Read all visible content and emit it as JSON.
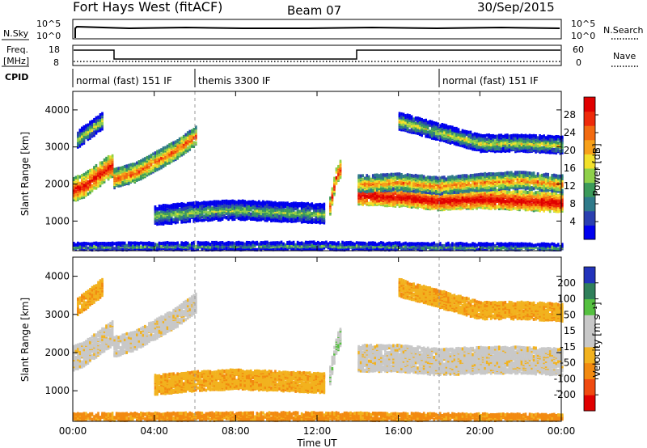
{
  "header": {
    "station": "Fort Hays West (fitACF)",
    "beam": "Beam 07",
    "date": "30/Sep/2015"
  },
  "noise_panel": {
    "left_label": "N.Sky",
    "right_label": "N.Search",
    "left_ticks": [
      "10^5",
      "10^0"
    ],
    "right_ticks": [
      "10^5",
      "10^0"
    ]
  },
  "freq_panel": {
    "left_label_line1": "Freq.",
    "left_label_line2": "[MHz]",
    "right_label": "Nave",
    "left_ticks": [
      "18",
      "8"
    ],
    "right_ticks": [
      "60",
      "0"
    ]
  },
  "cpid_panel": {
    "label": "CPID",
    "modes": [
      {
        "name": "normal (fast) 151 IF",
        "start_hour": 0,
        "end_hour": 6
      },
      {
        "name": "themis 3300 IF",
        "start_hour": 6,
        "end_hour": 18
      },
      {
        "name": "normal (fast) 151 IF",
        "start_hour": 18,
        "end_hour": 24
      }
    ]
  },
  "colors": {
    "power_scale": [
      "#0000ee",
      "#2a3fb0",
      "#2f7a8a",
      "#3c9a5a",
      "#8fd04a",
      "#f2e02a",
      "#f7a01a",
      "#f26a10",
      "#ee2a0a",
      "#e00000"
    ],
    "velocity_scale": [
      "#2233bb",
      "#2f7f5a",
      "#55c040",
      "#c8c8c8",
      "#c8c8c8",
      "#f2b21e",
      "#f28a10",
      "#f04a10",
      "#e00000"
    ],
    "frame": "#000000",
    "guide_line": "#9a9a9a"
  },
  "chart_data": [
    {
      "type": "heatmap",
      "name": "power",
      "xlabel": "",
      "ylabel": "Slant Range [km]",
      "xlim": [
        0,
        24
      ],
      "ylim": [
        200,
        4500
      ],
      "yticks": [
        "1000",
        "2000",
        "3000",
        "4000"
      ],
      "colorbar_label": "Power [dB]",
      "colorbar_ticks": [
        "28",
        "24",
        "20",
        "16",
        "12",
        "8",
        "4"
      ],
      "colorbar_range": [
        0,
        32
      ],
      "bands": [
        {
          "id": "main_echo_early",
          "x": [
            0.0,
            0.5,
            1.0,
            1.5,
            1.9
          ],
          "y_center": [
            1850,
            1950,
            2150,
            2350,
            2500
          ],
          "half_width": 300,
          "power": 22
        },
        {
          "id": "rising_echo_1",
          "x": [
            2.0,
            3.0,
            4.0,
            5.0,
            6.0
          ],
          "y_center": [
            2150,
            2300,
            2600,
            2900,
            3300
          ],
          "half_width": 250,
          "power": 18
        },
        {
          "id": "upper_echo_early",
          "x": [
            0.2,
            0.8,
            1.4
          ],
          "y_center": [
            3200,
            3450,
            3700
          ],
          "half_width": 200,
          "power": 10
        },
        {
          "id": "low_patches",
          "x": [
            4.0,
            6.0,
            8.0,
            10.0,
            12.3
          ],
          "y_center": [
            1150,
            1250,
            1300,
            1250,
            1200
          ],
          "half_width": 250,
          "power": 8
        },
        {
          "id": "spike_1250",
          "x": [
            12.6,
            12.9,
            13.1
          ],
          "y_center": [
            1400,
            2200,
            2400
          ],
          "half_width": 200,
          "power": 22
        },
        {
          "id": "main_echo_late_lower",
          "x": [
            14.0,
            16.0,
            18.0,
            20.0,
            22.0,
            24.0
          ],
          "y_center": [
            1700,
            1650,
            1550,
            1600,
            1550,
            1500
          ],
          "half_width": 250,
          "power": 24
        },
        {
          "id": "main_echo_late_upper",
          "x": [
            14.0,
            16.0,
            18.0,
            20.0,
            22.0,
            24.0
          ],
          "y_center": [
            2000,
            2050,
            1950,
            2050,
            2100,
            2000
          ],
          "half_width": 200,
          "power": 16
        },
        {
          "id": "upper_echo_late",
          "x": [
            16.0,
            18.0,
            20.0,
            22.0,
            24.0
          ],
          "y_center": [
            3700,
            3400,
            3100,
            3100,
            3050
          ],
          "half_width": 200,
          "power": 10
        },
        {
          "id": "ground_band",
          "x": [
            0.0,
            6.0,
            12.0,
            18.0,
            24.0
          ],
          "y_center": [
            300,
            320,
            330,
            300,
            280
          ],
          "half_width": 80,
          "power": 6
        }
      ]
    },
    {
      "type": "heatmap",
      "name": "velocity",
      "xlabel": "Time UT",
      "ylabel": "Slant Range [km]",
      "xlim": [
        0,
        24
      ],
      "ylim": [
        200,
        4500
      ],
      "xticks": [
        "00:00",
        "04:00",
        "08:00",
        "12:00",
        "16:00",
        "20:00",
        "00:00"
      ],
      "yticks": [
        "1000",
        "2000",
        "3000",
        "4000"
      ],
      "colorbar_label": "Velocity [m s⁻¹]",
      "colorbar_ticks": [
        "200",
        "100",
        "50",
        "15",
        "-15",
        "-50",
        "-100",
        "-200"
      ],
      "colorbar_range": [
        -250,
        250
      ],
      "bands": [
        {
          "id": "main_echo_early",
          "x": [
            0.0,
            0.5,
            1.0,
            1.5,
            1.9
          ],
          "y_center": [
            1850,
            1950,
            2150,
            2350,
            2500
          ],
          "half_width": 300,
          "velocity": 0
        },
        {
          "id": "rising_echo_1",
          "x": [
            2.0,
            3.0,
            4.0,
            5.0,
            6.0
          ],
          "y_center": [
            2150,
            2300,
            2600,
            2900,
            3300
          ],
          "half_width": 250,
          "velocity": 0
        },
        {
          "id": "upper_echo_early",
          "x": [
            0.2,
            0.8,
            1.4
          ],
          "y_center": [
            3200,
            3450,
            3700
          ],
          "half_width": 200,
          "velocity": -40
        },
        {
          "id": "low_patches",
          "x": [
            4.0,
            6.0,
            8.0,
            10.0,
            12.3
          ],
          "y_center": [
            1150,
            1250,
            1300,
            1250,
            1200
          ],
          "half_width": 250,
          "velocity": -40
        },
        {
          "id": "spike_1250",
          "x": [
            12.6,
            12.9,
            13.1
          ],
          "y_center": [
            1400,
            2200,
            2400
          ],
          "half_width": 200,
          "velocity": 40
        },
        {
          "id": "main_echo_late",
          "x": [
            14.0,
            16.0,
            18.0,
            20.0,
            22.0,
            24.0
          ],
          "y_center": [
            1850,
            1850,
            1750,
            1800,
            1800,
            1750
          ],
          "half_width": 330,
          "velocity": 0
        },
        {
          "id": "upper_echo_late",
          "x": [
            16.0,
            18.0,
            20.0,
            22.0,
            24.0
          ],
          "y_center": [
            3700,
            3400,
            3100,
            3100,
            3050
          ],
          "half_width": 200,
          "velocity": -40
        },
        {
          "id": "ground_band",
          "x": [
            0.0,
            6.0,
            12.0,
            18.0,
            24.0
          ],
          "y_center": [
            300,
            320,
            330,
            300,
            280
          ],
          "half_width": 80,
          "velocity": -60
        }
      ]
    }
  ]
}
